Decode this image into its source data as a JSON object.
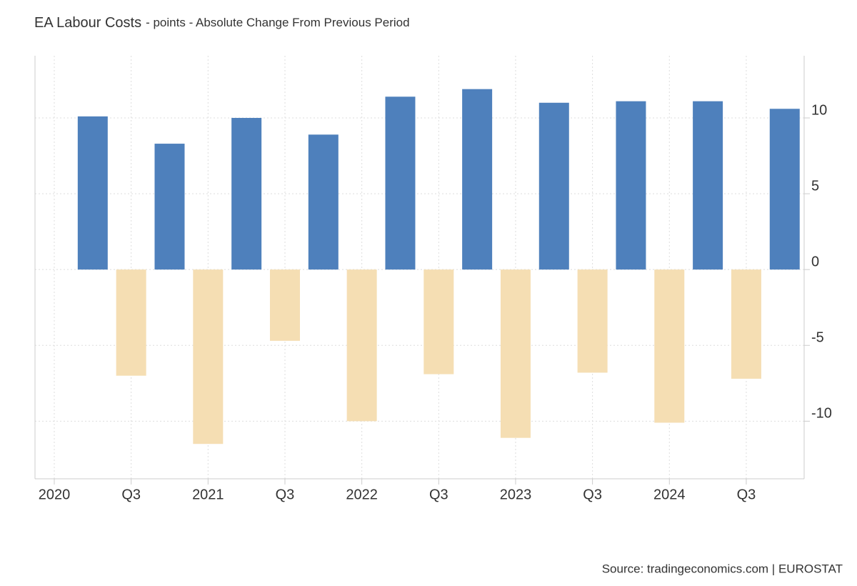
{
  "chart_data": {
    "type": "bar",
    "title": "EA Labour Costs",
    "subtitle": "- points - Absolute Change From Previous Period",
    "source": "Source: tradingeconomics.com | EUROSTAT",
    "categories": [
      "2020",
      null,
      "Q3",
      null,
      "2021",
      null,
      "Q3",
      null,
      "2022",
      null,
      "Q3",
      null,
      "2023",
      null,
      "Q3",
      null,
      "2024",
      null,
      "Q3",
      null
    ],
    "values": [
      null,
      10.1,
      -7.0,
      8.3,
      -11.5,
      10.0,
      -4.7,
      8.9,
      -10.0,
      11.4,
      -6.9,
      11.9,
      -11.1,
      11.0,
      -6.8,
      11.1,
      -10.1,
      11.1,
      -7.2,
      10.6
    ],
    "positive_color": "#4e80bc",
    "negative_color": "#f5deb3",
    "ylim": [
      -13.8,
      14.1
    ],
    "yticks": [
      -10,
      -5,
      0,
      5,
      10
    ],
    "grid": true
  }
}
